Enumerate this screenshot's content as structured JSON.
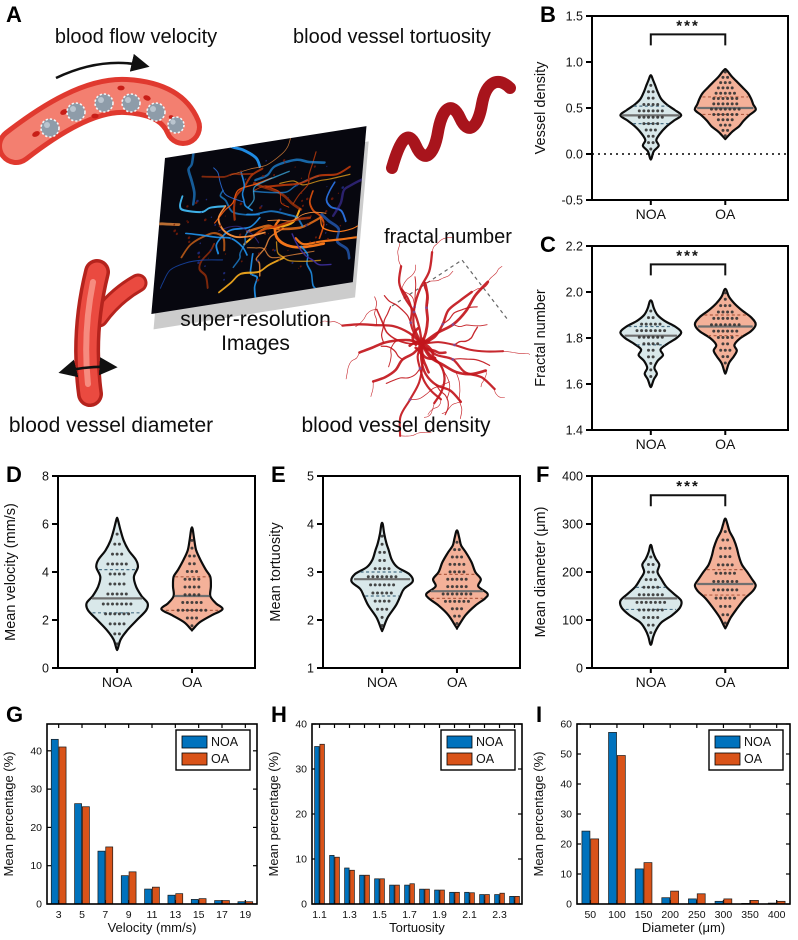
{
  "colors": {
    "noa_fill": "#d9e8ea",
    "oa_fill": "#f4b199",
    "noa_bar": "#0072BD",
    "oa_bar": "#D95319",
    "violin_outline": "#0c0c0c",
    "median_line": "#6f6f6f",
    "noa_quartile": "#4a7086",
    "oa_quartile": "#b05c42",
    "dot": "#333333",
    "vessel_red": "#c2161c",
    "illustration_red": "#ea4a40",
    "axis": "#000000"
  },
  "panels": {
    "a": {
      "label": "A"
    },
    "b": {
      "label": "B"
    },
    "c": {
      "label": "C"
    },
    "d": {
      "label": "D"
    },
    "e": {
      "label": "E"
    },
    "f": {
      "label": "F"
    },
    "g": {
      "label": "G"
    },
    "h": {
      "label": "H"
    },
    "i": {
      "label": "I"
    }
  },
  "panel_a": {
    "captions": {
      "blood_flow_velocity": "blood flow velocity",
      "blood_vessel_tortuosity": "blood vessel tortuosity",
      "fractal_number": "fractal number",
      "super_resolution_line1": "super-resolution",
      "super_resolution_line2": "Images",
      "blood_vessel_diameter": "blood vessel diameter",
      "blood_vessel_density": "blood vessel density"
    }
  },
  "chart_data": [
    {
      "panel": "B",
      "name": "vessel-density",
      "type": "violin",
      "ylabel": "Vessel density",
      "ylim": [
        -0.5,
        1.5
      ],
      "yticks": [
        -0.5,
        0.0,
        0.5,
        1.0,
        1.5
      ],
      "ytick_labels": [
        "-0.5",
        "0.0",
        "0.5",
        "1.0",
        "1.5"
      ],
      "categories": [
        "NOA",
        "OA"
      ],
      "significance": "***",
      "zero_reference_line": 0.0,
      "groups": [
        {
          "name": "NOA",
          "median": 0.42,
          "q1": 0.33,
          "q3": 0.52,
          "min": -0.05,
          "max": 0.85,
          "n_points": 42,
          "profile": [
            [
              -0.05,
              0.02
            ],
            [
              0.03,
              0.1
            ],
            [
              0.09,
              0.26
            ],
            [
              0.15,
              0.18
            ],
            [
              0.22,
              0.3
            ],
            [
              0.3,
              0.52
            ],
            [
              0.36,
              0.75
            ],
            [
              0.42,
              1.0
            ],
            [
              0.48,
              0.78
            ],
            [
              0.54,
              0.52
            ],
            [
              0.6,
              0.34
            ],
            [
              0.68,
              0.22
            ],
            [
              0.75,
              0.14
            ],
            [
              0.8,
              0.08
            ],
            [
              0.85,
              0.02
            ]
          ]
        },
        {
          "name": "OA",
          "median": 0.5,
          "q1": 0.43,
          "q3": 0.62,
          "min": 0.17,
          "max": 0.92,
          "n_points": 48,
          "profile": [
            [
              0.17,
              0.02
            ],
            [
              0.24,
              0.22
            ],
            [
              0.3,
              0.45
            ],
            [
              0.36,
              0.6
            ],
            [
              0.42,
              0.78
            ],
            [
              0.48,
              1.0
            ],
            [
              0.54,
              0.92
            ],
            [
              0.6,
              0.85
            ],
            [
              0.66,
              0.75
            ],
            [
              0.72,
              0.58
            ],
            [
              0.78,
              0.4
            ],
            [
              0.84,
              0.22
            ],
            [
              0.89,
              0.1
            ],
            [
              0.92,
              0.02
            ]
          ]
        }
      ]
    },
    {
      "panel": "C",
      "name": "fractal-number",
      "type": "violin",
      "ylabel": "Fractal number",
      "ylim": [
        1.4,
        2.2
      ],
      "yticks": [
        1.4,
        1.6,
        1.8,
        2.0,
        2.2
      ],
      "ytick_labels": [
        "1.4",
        "1.6",
        "1.8",
        "2.0",
        "2.2"
      ],
      "categories": [
        "NOA",
        "OA"
      ],
      "significance": "***",
      "zero_reference_line": null,
      "groups": [
        {
          "name": "NOA",
          "median": 1.81,
          "q1": 1.77,
          "q3": 1.85,
          "min": 1.59,
          "max": 1.96,
          "n_points": 45,
          "profile": [
            [
              1.59,
              0.02
            ],
            [
              1.62,
              0.1
            ],
            [
              1.645,
              0.2
            ],
            [
              1.67,
              0.12
            ],
            [
              1.7,
              0.22
            ],
            [
              1.725,
              0.4
            ],
            [
              1.75,
              0.32
            ],
            [
              1.775,
              0.55
            ],
            [
              1.8,
              0.85
            ],
            [
              1.825,
              1.0
            ],
            [
              1.85,
              0.8
            ],
            [
              1.875,
              0.45
            ],
            [
              1.9,
              0.22
            ],
            [
              1.93,
              0.1
            ],
            [
              1.96,
              0.03
            ]
          ]
        },
        {
          "name": "OA",
          "median": 1.85,
          "q1": 1.81,
          "q3": 1.9,
          "min": 1.65,
          "max": 2.01,
          "n_points": 48,
          "profile": [
            [
              1.65,
              0.02
            ],
            [
              1.69,
              0.12
            ],
            [
              1.72,
              0.28
            ],
            [
              1.745,
              0.38
            ],
            [
              1.77,
              0.3
            ],
            [
              1.8,
              0.5
            ],
            [
              1.83,
              0.85
            ],
            [
              1.86,
              1.0
            ],
            [
              1.89,
              0.85
            ],
            [
              1.92,
              0.55
            ],
            [
              1.95,
              0.3
            ],
            [
              1.98,
              0.12
            ],
            [
              2.01,
              0.03
            ]
          ]
        }
      ]
    },
    {
      "panel": "D",
      "name": "mean-velocity",
      "type": "violin",
      "ylabel": "Mean velocity (mm/s)",
      "ylim": [
        0,
        8
      ],
      "yticks": [
        0,
        2,
        4,
        6,
        8
      ],
      "ytick_labels": [
        "0",
        "2",
        "4",
        "6",
        "8"
      ],
      "categories": [
        "NOA",
        "OA"
      ],
      "significance": null,
      "zero_reference_line": null,
      "groups": [
        {
          "name": "NOA",
          "median": 2.9,
          "q1": 2.3,
          "q3": 4.1,
          "min": 0.8,
          "max": 6.2,
          "n_points": 40,
          "profile": [
            [
              0.8,
              0.02
            ],
            [
              1.2,
              0.12
            ],
            [
              1.6,
              0.35
            ],
            [
              2.0,
              0.65
            ],
            [
              2.4,
              0.95
            ],
            [
              2.7,
              1.0
            ],
            [
              3.0,
              0.8
            ],
            [
              3.4,
              0.62
            ],
            [
              3.8,
              0.55
            ],
            [
              4.2,
              0.68
            ],
            [
              4.5,
              0.62
            ],
            [
              4.9,
              0.38
            ],
            [
              5.3,
              0.22
            ],
            [
              5.7,
              0.12
            ],
            [
              6.2,
              0.02
            ]
          ]
        },
        {
          "name": "OA",
          "median": 3.0,
          "q1": 2.4,
          "q3": 3.8,
          "min": 1.6,
          "max": 5.8,
          "n_points": 48,
          "profile": [
            [
              1.6,
              0.02
            ],
            [
              1.9,
              0.25
            ],
            [
              2.2,
              0.65
            ],
            [
              2.45,
              1.0
            ],
            [
              2.7,
              0.78
            ],
            [
              3.0,
              0.6
            ],
            [
              3.4,
              0.62
            ],
            [
              3.8,
              0.6
            ],
            [
              4.1,
              0.45
            ],
            [
              4.5,
              0.28
            ],
            [
              4.9,
              0.14
            ],
            [
              5.3,
              0.08
            ],
            [
              5.8,
              0.02
            ]
          ]
        }
      ]
    },
    {
      "panel": "E",
      "name": "mean-tortuosity",
      "type": "violin",
      "ylabel": "Mean tortuosity",
      "ylim": [
        1,
        5
      ],
      "yticks": [
        1,
        2,
        3,
        4,
        5
      ],
      "ytick_labels": [
        "1",
        "2",
        "3",
        "4",
        "5"
      ],
      "categories": [
        "NOA",
        "OA"
      ],
      "significance": null,
      "zero_reference_line": null,
      "groups": [
        {
          "name": "NOA",
          "median": 2.85,
          "q1": 2.5,
          "q3": 3.0,
          "min": 1.8,
          "max": 4.0,
          "n_points": 42,
          "profile": [
            [
              1.8,
              0.02
            ],
            [
              2.05,
              0.18
            ],
            [
              2.3,
              0.45
            ],
            [
              2.5,
              0.6
            ],
            [
              2.65,
              0.72
            ],
            [
              2.8,
              1.0
            ],
            [
              2.95,
              0.9
            ],
            [
              3.1,
              0.5
            ],
            [
              3.25,
              0.32
            ],
            [
              3.45,
              0.22
            ],
            [
              3.6,
              0.14
            ],
            [
              3.8,
              0.07
            ],
            [
              4.0,
              0.02
            ]
          ]
        },
        {
          "name": "OA",
          "median": 2.6,
          "q1": 2.45,
          "q3": 2.95,
          "min": 1.85,
          "max": 3.85,
          "n_points": 48,
          "profile": [
            [
              1.85,
              0.02
            ],
            [
              2.1,
              0.28
            ],
            [
              2.3,
              0.6
            ],
            [
              2.45,
              0.92
            ],
            [
              2.55,
              1.0
            ],
            [
              2.7,
              0.7
            ],
            [
              2.85,
              0.78
            ],
            [
              3.0,
              0.6
            ],
            [
              3.2,
              0.48
            ],
            [
              3.4,
              0.3
            ],
            [
              3.55,
              0.14
            ],
            [
              3.7,
              0.08
            ],
            [
              3.85,
              0.02
            ]
          ]
        }
      ]
    },
    {
      "panel": "F",
      "name": "mean-diameter",
      "type": "violin",
      "ylabel": "Mean diameter (μm)",
      "ylim": [
        0,
        400
      ],
      "yticks": [
        0,
        100,
        200,
        300,
        400
      ],
      "ytick_labels": [
        "0",
        "100",
        "200",
        "300",
        "400"
      ],
      "categories": [
        "NOA",
        "OA"
      ],
      "significance": "***",
      "zero_reference_line": null,
      "groups": [
        {
          "name": "NOA",
          "median": 145,
          "q1": 122,
          "q3": 168,
          "min": 50,
          "max": 255,
          "n_points": 45,
          "profile": [
            [
              50,
              0.02
            ],
            [
              65,
              0.08
            ],
            [
              80,
              0.18
            ],
            [
              95,
              0.35
            ],
            [
              110,
              0.7
            ],
            [
              125,
              0.95
            ],
            [
              140,
              1.0
            ],
            [
              155,
              0.75
            ],
            [
              170,
              0.5
            ],
            [
              185,
              0.35
            ],
            [
              200,
              0.22
            ],
            [
              215,
              0.28
            ],
            [
              228,
              0.16
            ],
            [
              242,
              0.07
            ],
            [
              255,
              0.02
            ]
          ]
        },
        {
          "name": "OA",
          "median": 175,
          "q1": 152,
          "q3": 205,
          "min": 85,
          "max": 310,
          "n_points": 48,
          "profile": [
            [
              85,
              0.02
            ],
            [
              105,
              0.18
            ],
            [
              125,
              0.4
            ],
            [
              145,
              0.65
            ],
            [
              160,
              0.9
            ],
            [
              172,
              1.0
            ],
            [
              185,
              0.88
            ],
            [
              200,
              0.72
            ],
            [
              215,
              0.55
            ],
            [
              232,
              0.45
            ],
            [
              250,
              0.38
            ],
            [
              268,
              0.28
            ],
            [
              285,
              0.14
            ],
            [
              300,
              0.07
            ],
            [
              310,
              0.02
            ]
          ]
        }
      ]
    },
    {
      "panel": "G",
      "name": "velocity-distribution",
      "type": "bar",
      "xlabel": "Velocity (mm/s)",
      "ylabel": "Mean percentage (%)",
      "ylim": [
        0,
        47
      ],
      "yticks": [
        0,
        10,
        20,
        30,
        40
      ],
      "categories": [
        "3",
        "5",
        "7",
        "9",
        "11",
        "13",
        "15",
        "17",
        "19"
      ],
      "xtick_label_step": 1,
      "legend_position": "top-right",
      "series": [
        {
          "name": "NOA",
          "values": [
            43.0,
            26.2,
            13.8,
            7.4,
            3.9,
            2.3,
            1.2,
            0.9,
            0.6
          ]
        },
        {
          "name": "OA",
          "values": [
            41.0,
            25.4,
            14.9,
            8.4,
            4.4,
            2.7,
            1.4,
            0.9,
            0.6
          ]
        }
      ]
    },
    {
      "panel": "H",
      "name": "tortuosity-distribution",
      "type": "bar",
      "xlabel": "Tortuosity",
      "ylabel": "Mean percentage (%)",
      "ylim": [
        0,
        40
      ],
      "yticks": [
        0,
        10,
        20,
        30,
        40
      ],
      "categories": [
        "1.1",
        "1.2",
        "1.3",
        "1.4",
        "1.5",
        "1.6",
        "1.7",
        "1.8",
        "1.9",
        "2.0",
        "2.1",
        "2.2",
        "2.3",
        "2.4"
      ],
      "xtick_label_step": 2,
      "legend_position": "top-right",
      "series": [
        {
          "name": "NOA",
          "values": [
            35.0,
            10.8,
            8.0,
            6.4,
            5.6,
            4.2,
            4.2,
            3.3,
            3.1,
            2.6,
            2.6,
            2.1,
            2.1,
            1.7
          ]
        },
        {
          "name": "OA",
          "values": [
            35.5,
            10.4,
            7.5,
            6.4,
            5.6,
            4.2,
            4.5,
            3.3,
            3.1,
            2.6,
            2.5,
            2.1,
            2.4,
            1.7
          ]
        }
      ]
    },
    {
      "panel": "I",
      "name": "diameter-distribution",
      "type": "bar",
      "xlabel": "Diameter (μm)",
      "ylabel": "Mean percentage (%)",
      "ylim": [
        0,
        60
      ],
      "yticks": [
        0,
        10,
        20,
        30,
        40,
        50,
        60
      ],
      "categories": [
        "50",
        "100",
        "150",
        "200",
        "250",
        "300",
        "350",
        "400"
      ],
      "xtick_label_step": 1,
      "legend_position": "top-right",
      "series": [
        {
          "name": "NOA",
          "values": [
            24.3,
            57.2,
            11.7,
            2.1,
            1.7,
            0.9,
            0.2,
            0.3
          ]
        },
        {
          "name": "OA",
          "values": [
            21.7,
            49.5,
            13.8,
            4.3,
            3.4,
            1.7,
            1.2,
            0.9
          ]
        }
      ]
    }
  ]
}
